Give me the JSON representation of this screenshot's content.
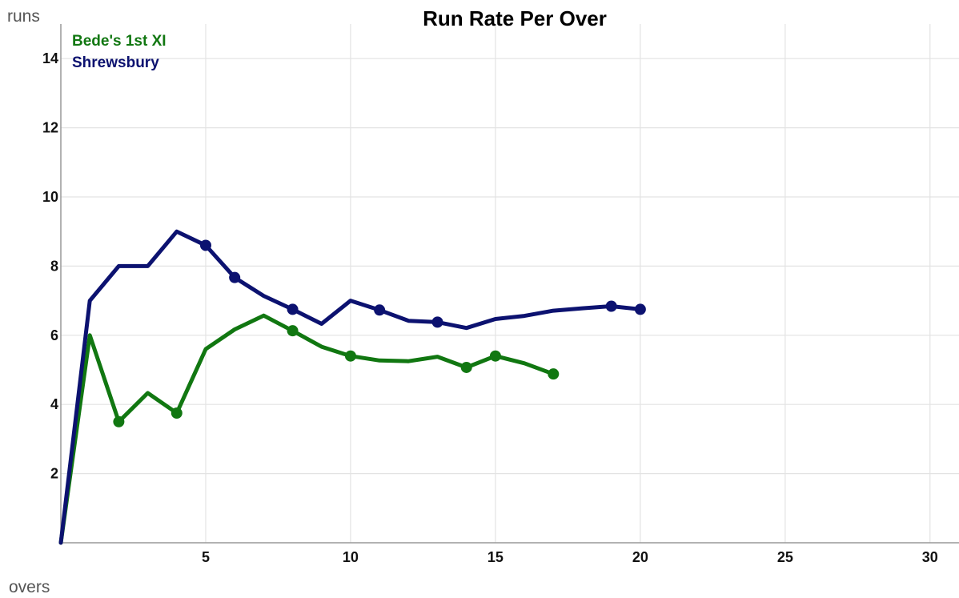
{
  "chart_data": {
    "type": "line",
    "title": "Run Rate Per Over",
    "xlabel": "overs",
    "ylabel": "runs",
    "xlim": [
      0,
      31
    ],
    "ylim": [
      0,
      15
    ],
    "x_ticks": [
      5,
      10,
      15,
      20,
      25,
      30
    ],
    "y_ticks": [
      2,
      4,
      6,
      8,
      10,
      12,
      14
    ],
    "grid": true,
    "legend_position": "top-left",
    "series": [
      {
        "name": "Bede's 1st XI",
        "color": "#117711",
        "x": [
          0,
          1,
          2,
          3,
          4,
          5,
          6,
          7,
          8,
          9,
          10,
          11,
          12,
          13,
          14,
          15,
          16,
          17
        ],
        "values": [
          0,
          6.0,
          3.5,
          4.33,
          3.75,
          5.6,
          6.17,
          6.57,
          6.13,
          5.67,
          5.4,
          5.27,
          5.25,
          5.38,
          5.07,
          5.4,
          5.19,
          4.88
        ],
        "markers_at": [
          2,
          4,
          8,
          10,
          14,
          15,
          17
        ]
      },
      {
        "name": "Shrewsbury",
        "color": "#0c1270",
        "x": [
          0,
          1,
          2,
          3,
          4,
          5,
          6,
          7,
          8,
          9,
          10,
          11,
          12,
          13,
          14,
          15,
          16,
          17,
          18,
          19,
          20
        ],
        "values": [
          0,
          7.0,
          8.0,
          8.0,
          9.0,
          8.6,
          7.67,
          7.14,
          6.75,
          6.33,
          7.0,
          6.73,
          6.42,
          6.38,
          6.21,
          6.47,
          6.56,
          6.71,
          6.78,
          6.84,
          6.75
        ],
        "markers_at": [
          5,
          6,
          8,
          11,
          13,
          19,
          20
        ]
      }
    ]
  }
}
